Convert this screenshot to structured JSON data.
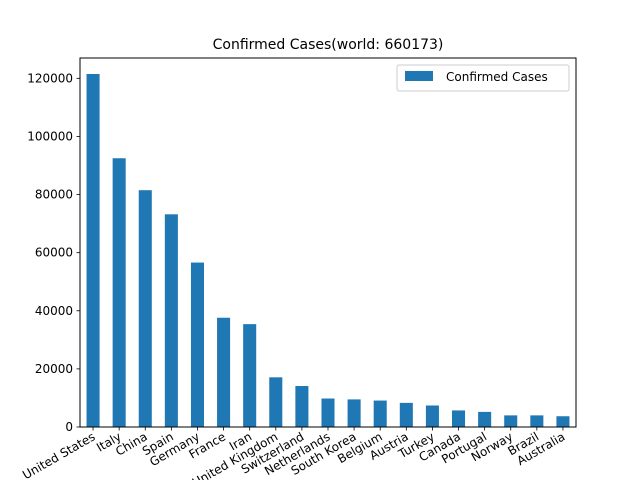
{
  "chart_data": {
    "type": "bar",
    "title": "Confirmed Cases(world: 660173)",
    "xlabel": "",
    "ylabel": "",
    "categories": [
      "United States",
      "Italy",
      "China",
      "Spain",
      "Germany",
      "France",
      "Iran",
      "United Kingdom",
      "Switzerland",
      "Netherlands",
      "South Korea",
      "Belgium",
      "Austria",
      "Turkey",
      "Canada",
      "Portugal",
      "Norway",
      "Brazil",
      "Australia"
    ],
    "series": [
      {
        "name": "Confirmed Cases",
        "color": "#1f77b4",
        "values": [
          121500,
          92500,
          81500,
          73200,
          56600,
          37600,
          35400,
          17100,
          14100,
          9800,
          9500,
          9100,
          8300,
          7400,
          5700,
          5200,
          4000,
          4000,
          3700
        ]
      }
    ],
    "ylim": [
      0,
      127000
    ],
    "yticks": [
      0,
      20000,
      40000,
      60000,
      80000,
      100000,
      120000
    ],
    "grid": false,
    "legend_position": "top-right"
  }
}
